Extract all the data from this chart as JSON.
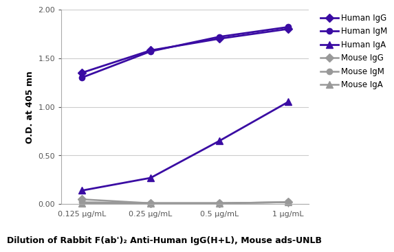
{
  "x_labels": [
    "0.125 μg/mL",
    "0.25 μg/mL",
    "0.5 μg/mL",
    "1 μg/mL"
  ],
  "x_values": [
    0,
    1,
    2,
    3
  ],
  "series": [
    {
      "label": "Human IgG",
      "values": [
        1.35,
        1.58,
        1.7,
        1.8
      ],
      "color": "#3a0ca3",
      "marker": "D",
      "markersize": 6,
      "linewidth": 2.0
    },
    {
      "label": "Human IgM",
      "values": [
        1.3,
        1.57,
        1.72,
        1.82
      ],
      "color": "#3a0ca3",
      "marker": "o",
      "markersize": 6,
      "linewidth": 2.0
    },
    {
      "label": "Human IgA",
      "values": [
        0.14,
        0.27,
        0.65,
        1.05
      ],
      "color": "#3a0ca3",
      "marker": "^",
      "markersize": 7,
      "linewidth": 2.0
    },
    {
      "label": "Mouse IgG",
      "values": [
        0.05,
        0.01,
        0.01,
        0.02
      ],
      "color": "#999999",
      "marker": "D",
      "markersize": 6,
      "linewidth": 1.8
    },
    {
      "label": "Mouse IgM",
      "values": [
        0.02,
        0.01,
        0.01,
        0.02
      ],
      "color": "#999999",
      "marker": "o",
      "markersize": 6,
      "linewidth": 1.8
    },
    {
      "label": "Mouse IgA",
      "values": [
        0.01,
        0.01,
        0.01,
        0.02
      ],
      "color": "#999999",
      "marker": "^",
      "markersize": 7,
      "linewidth": 1.8
    }
  ],
  "ylabel": "O.D. at 405 mn",
  "xlabel": "Dilution of Rabbit F(ab')₂ Anti-Human IgG(H+L), Mouse ads-UNLB",
  "ylim": [
    0.0,
    2.0
  ],
  "yticks": [
    0.0,
    0.5,
    1.0,
    1.5,
    2.0
  ],
  "background_color": "#ffffff",
  "grid_color": "#cccccc",
  "ylabel_fontsize": 9,
  "xlabel_fontsize": 9,
  "tick_fontsize": 8,
  "legend_fontsize": 8.5
}
